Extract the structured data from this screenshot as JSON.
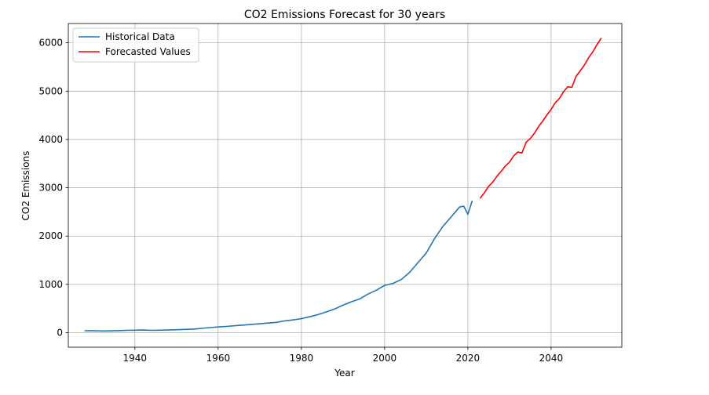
{
  "chart_data": {
    "type": "line",
    "title": "CO2 Emissions Forecast for 30 years",
    "xlabel": "Year",
    "ylabel": "CO2 Emissions",
    "xlim": [
      1924,
      2057
    ],
    "ylim": [
      -300,
      6400
    ],
    "grid": true,
    "legend_position": "top-left",
    "x_ticks": [
      1940,
      1960,
      1980,
      2000,
      2020,
      2040
    ],
    "y_ticks": [
      0,
      1000,
      2000,
      3000,
      4000,
      5000,
      6000
    ],
    "series": [
      {
        "name": "Historical Data",
        "color": "#1f77b4",
        "x": [
          1928,
          1930,
          1932,
          1934,
          1936,
          1938,
          1940,
          1942,
          1944,
          1946,
          1948,
          1950,
          1952,
          1954,
          1956,
          1958,
          1960,
          1962,
          1964,
          1966,
          1968,
          1970,
          1972,
          1974,
          1976,
          1978,
          1980,
          1982,
          1984,
          1986,
          1988,
          1990,
          1992,
          1994,
          1996,
          1998,
          2000,
          2002,
          2004,
          2006,
          2008,
          2010,
          2012,
          2014,
          2016,
          2018,
          2019,
          2020,
          2021
        ],
        "values": [
          40,
          42,
          36,
          38,
          42,
          48,
          52,
          55,
          48,
          52,
          55,
          62,
          68,
          75,
          90,
          105,
          118,
          130,
          145,
          158,
          172,
          185,
          200,
          215,
          245,
          265,
          290,
          330,
          375,
          430,
          490,
          570,
          640,
          700,
          800,
          880,
          980,
          1020,
          1100,
          1250,
          1450,
          1650,
          1950,
          2200,
          2400,
          2600,
          2620,
          2450,
          2720
        ]
      },
      {
        "name": "Forecasted Values",
        "color": "#ff0000",
        "x": [
          2023,
          2024,
          2025,
          2026,
          2027,
          2028,
          2029,
          2030,
          2031,
          2032,
          2033,
          2034,
          2035,
          2036,
          2037,
          2038,
          2039,
          2040,
          2041,
          2042,
          2043,
          2044,
          2045,
          2046,
          2047,
          2048,
          2049,
          2050,
          2051,
          2052
        ],
        "values": [
          2790,
          2900,
          3030,
          3120,
          3240,
          3340,
          3450,
          3530,
          3660,
          3740,
          3720,
          3940,
          4020,
          4130,
          4270,
          4380,
          4510,
          4620,
          4760,
          4850,
          4990,
          5090,
          5080,
          5310,
          5420,
          5540,
          5690,
          5810,
          5960,
          6090
        ]
      }
    ]
  }
}
